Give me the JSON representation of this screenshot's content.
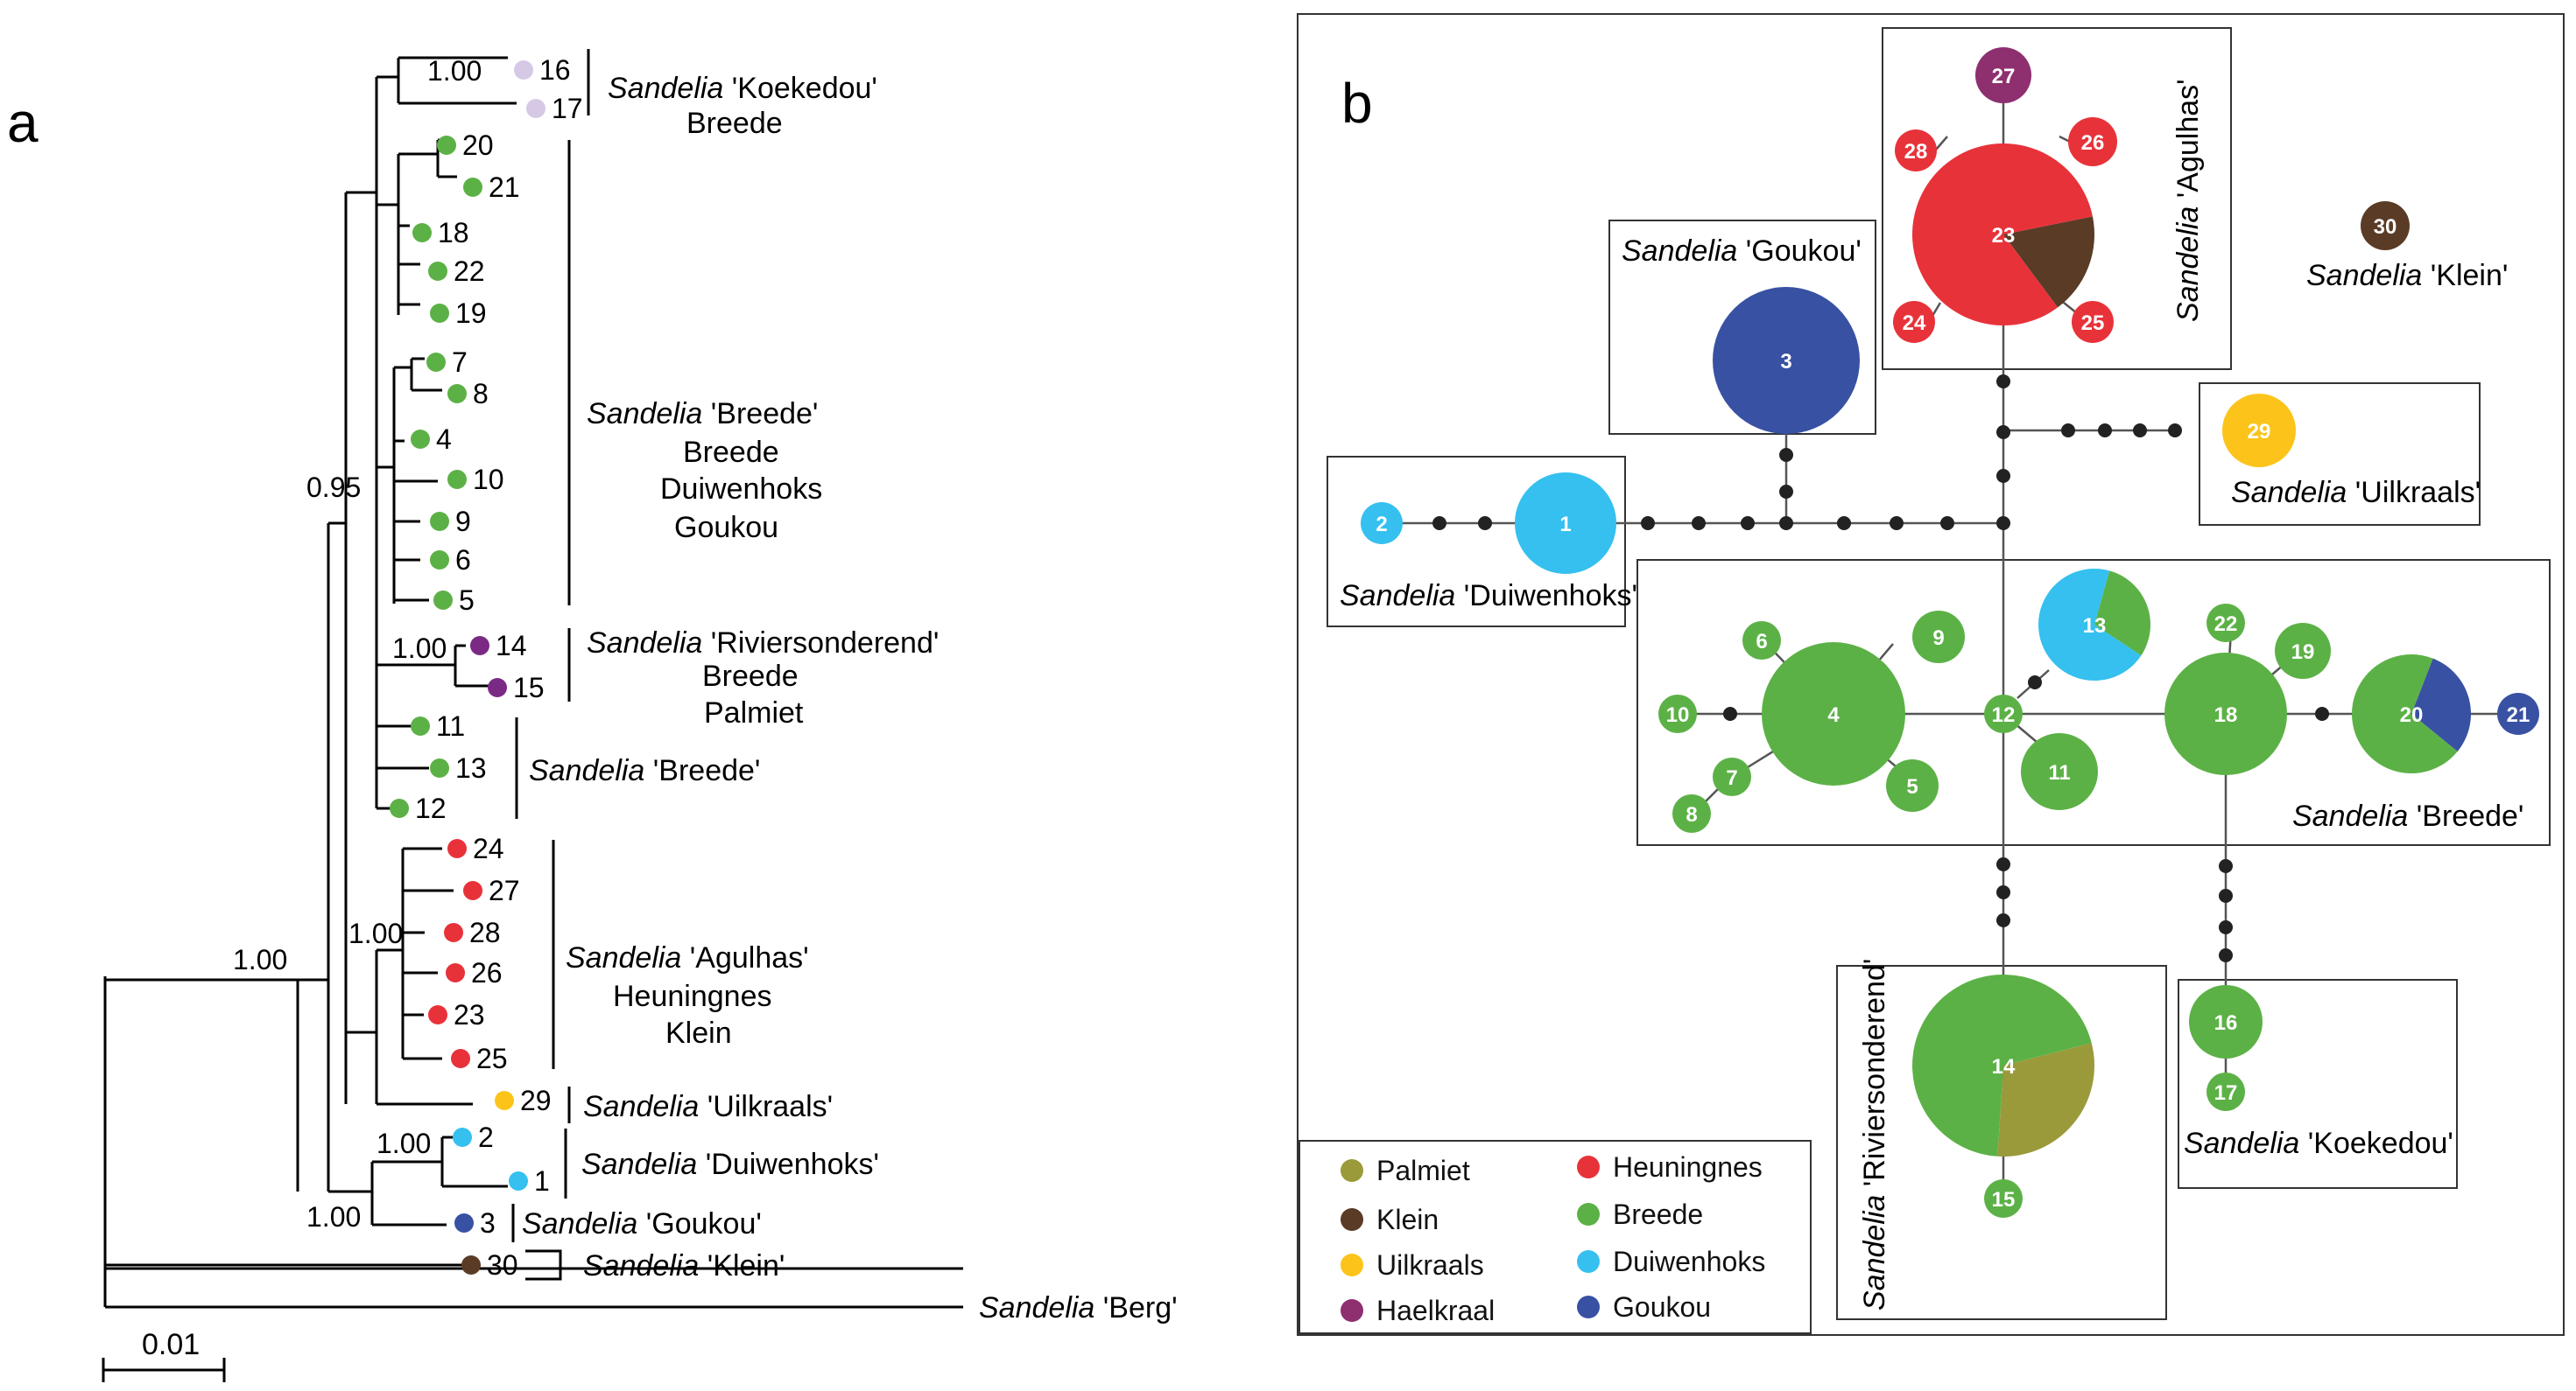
{
  "panels": {
    "a": "a",
    "b": "b"
  },
  "genus": "Sandelia",
  "colors": {
    "Palmiet": "#9b9a3a",
    "Klein": "#5a3b26",
    "Uilkraals": "#fcc41a",
    "Haelkraal": "#8e2f70",
    "Heuningnes": "#e8323a",
    "Breede": "#5cb146",
    "Duiwenhoks": "#35c0ef",
    "Goukou": "#3851a3",
    "Koekedou": "#d6c9e6",
    "Riviersonderend": "#7a2a85"
  },
  "tree": {
    "supports": [
      "1.00",
      "0.95",
      "1.00",
      "1.00",
      "1.00",
      "1.00",
      "1.00"
    ],
    "scale_label": "0.01",
    "tips": [
      {
        "id": "16",
        "label": "16",
        "pop": "Koekedou"
      },
      {
        "id": "17",
        "label": "17",
        "pop": "Koekedou"
      },
      {
        "id": "20",
        "label": "20",
        "pop": "Breede"
      },
      {
        "id": "21",
        "label": "21",
        "pop": "Breede"
      },
      {
        "id": "18",
        "label": "18",
        "pop": "Breede"
      },
      {
        "id": "22",
        "label": "22",
        "pop": "Breede"
      },
      {
        "id": "19",
        "label": "19",
        "pop": "Breede"
      },
      {
        "id": "7",
        "label": "7",
        "pop": "Breede"
      },
      {
        "id": "8",
        "label": "8",
        "pop": "Breede"
      },
      {
        "id": "4",
        "label": "4",
        "pop": "Breede"
      },
      {
        "id": "10",
        "label": "10",
        "pop": "Breede"
      },
      {
        "id": "9",
        "label": "9",
        "pop": "Breede"
      },
      {
        "id": "6",
        "label": "6",
        "pop": "Breede"
      },
      {
        "id": "5",
        "label": "5",
        "pop": "Breede"
      },
      {
        "id": "14",
        "label": "14",
        "pop": "Riviersonderend"
      },
      {
        "id": "15",
        "label": "15",
        "pop": "Riviersonderend"
      },
      {
        "id": "11",
        "label": "11",
        "pop": "Breede"
      },
      {
        "id": "13",
        "label": "13",
        "pop": "Breede"
      },
      {
        "id": "12",
        "label": "12",
        "pop": "Breede"
      },
      {
        "id": "24",
        "label": "24",
        "pop": "Heuningnes"
      },
      {
        "id": "27",
        "label": "27",
        "pop": "Heuningnes"
      },
      {
        "id": "28",
        "label": "28",
        "pop": "Heuningnes"
      },
      {
        "id": "26",
        "label": "26",
        "pop": "Heuningnes"
      },
      {
        "id": "23",
        "label": "23",
        "pop": "Heuningnes"
      },
      {
        "id": "25",
        "label": "25",
        "pop": "Heuningnes"
      },
      {
        "id": "29",
        "label": "29",
        "pop": "Uilkraals"
      },
      {
        "id": "2",
        "label": "2",
        "pop": "Duiwenhoks"
      },
      {
        "id": "1",
        "label": "1",
        "pop": "Duiwenhoks"
      },
      {
        "id": "3",
        "label": "3",
        "pop": "Goukou"
      },
      {
        "id": "30",
        "label": "30",
        "pop": "Klein"
      }
    ],
    "clades": [
      {
        "name": "'Koekedou'",
        "rivers": [
          "Breede"
        ]
      },
      {
        "name": "'Breede'",
        "rivers": [
          "Breede",
          "Duiwenhoks",
          "Goukou"
        ]
      },
      {
        "name": "'Riviersonderend'",
        "rivers": [
          "Breede",
          "Palmiet"
        ]
      },
      {
        "name": "'Breede'",
        "rivers": []
      },
      {
        "name": "'Agulhas'",
        "rivers": [
          "Heuningnes",
          "Klein"
        ]
      },
      {
        "name": "'Uilkraals'",
        "rivers": []
      },
      {
        "name": "'Duiwenhoks'",
        "rivers": []
      },
      {
        "name": "'Goukou'",
        "rivers": []
      },
      {
        "name": "'Klein'",
        "rivers": []
      }
    ],
    "outgroup": {
      "name": "'Berg'"
    }
  },
  "network": {
    "groups": [
      {
        "name": "'Goukou'"
      },
      {
        "name": "'Agulhas'"
      },
      {
        "name": "'Klein'"
      },
      {
        "name": "'Uilkraals'"
      },
      {
        "name": "'Duiwenhoks'"
      },
      {
        "name": "'Breede'"
      },
      {
        "name": "'Riviersonderend'"
      },
      {
        "name": "'Koekedou'"
      }
    ],
    "haplotypes": [
      {
        "label": "1",
        "slices": [
          {
            "pop": "Duiwenhoks",
            "frac": 1
          }
        ]
      },
      {
        "label": "2",
        "slices": [
          {
            "pop": "Duiwenhoks",
            "frac": 1
          }
        ]
      },
      {
        "label": "3",
        "slices": [
          {
            "pop": "Goukou",
            "frac": 1
          }
        ]
      },
      {
        "label": "4",
        "slices": [
          {
            "pop": "Breede",
            "frac": 1
          }
        ]
      },
      {
        "label": "5",
        "slices": [
          {
            "pop": "Breede",
            "frac": 1
          }
        ]
      },
      {
        "label": "6",
        "slices": [
          {
            "pop": "Breede",
            "frac": 1
          }
        ]
      },
      {
        "label": "7",
        "slices": [
          {
            "pop": "Breede",
            "frac": 1
          }
        ]
      },
      {
        "label": "8",
        "slices": [
          {
            "pop": "Breede",
            "frac": 1
          }
        ]
      },
      {
        "label": "9",
        "slices": [
          {
            "pop": "Breede",
            "frac": 1
          }
        ]
      },
      {
        "label": "10",
        "slices": [
          {
            "pop": "Breede",
            "frac": 1
          }
        ]
      },
      {
        "label": "11",
        "slices": [
          {
            "pop": "Breede",
            "frac": 1
          }
        ]
      },
      {
        "label": "12",
        "slices": [
          {
            "pop": "Breede",
            "frac": 1
          }
        ]
      },
      {
        "label": "13",
        "slices": [
          {
            "pop": "Breede",
            "frac": 0.3
          },
          {
            "pop": "Duiwenhoks",
            "frac": 0.7
          }
        ]
      },
      {
        "label": "14",
        "slices": [
          {
            "pop": "Palmiet",
            "frac": 0.3
          },
          {
            "pop": "Breede",
            "frac": 0.7
          }
        ]
      },
      {
        "label": "15",
        "slices": [
          {
            "pop": "Breede",
            "frac": 1
          }
        ]
      },
      {
        "label": "16",
        "slices": [
          {
            "pop": "Breede",
            "frac": 1
          }
        ]
      },
      {
        "label": "17",
        "slices": [
          {
            "pop": "Breede",
            "frac": 1
          }
        ]
      },
      {
        "label": "18",
        "slices": [
          {
            "pop": "Breede",
            "frac": 1
          }
        ]
      },
      {
        "label": "19",
        "slices": [
          {
            "pop": "Breede",
            "frac": 1
          }
        ]
      },
      {
        "label": "20",
        "slices": [
          {
            "pop": "Goukou",
            "frac": 0.3
          },
          {
            "pop": "Breede",
            "frac": 0.7
          }
        ]
      },
      {
        "label": "21",
        "slices": [
          {
            "pop": "Goukou",
            "frac": 1
          }
        ]
      },
      {
        "label": "22",
        "slices": [
          {
            "pop": "Breede",
            "frac": 1
          }
        ]
      },
      {
        "label": "23",
        "slices": [
          {
            "pop": "Klein",
            "frac": 0.18
          },
          {
            "pop": "Heuningnes",
            "frac": 0.82
          }
        ]
      },
      {
        "label": "24",
        "slices": [
          {
            "pop": "Heuningnes",
            "frac": 1
          }
        ]
      },
      {
        "label": "25",
        "slices": [
          {
            "pop": "Heuningnes",
            "frac": 1
          }
        ]
      },
      {
        "label": "26",
        "slices": [
          {
            "pop": "Heuningnes",
            "frac": 1
          }
        ]
      },
      {
        "label": "27",
        "slices": [
          {
            "pop": "Haelkraal",
            "frac": 1
          }
        ]
      },
      {
        "label": "28",
        "slices": [
          {
            "pop": "Heuningnes",
            "frac": 1
          }
        ]
      },
      {
        "label": "29",
        "slices": [
          {
            "pop": "Uilkraals",
            "frac": 1
          }
        ]
      },
      {
        "label": "30",
        "slices": [
          {
            "pop": "Klein",
            "frac": 1
          }
        ]
      }
    ],
    "legend": [
      {
        "label": "Palmiet",
        "pop": "Palmiet"
      },
      {
        "label": "Klein",
        "pop": "Klein"
      },
      {
        "label": "Uilkraals",
        "pop": "Uilkraals"
      },
      {
        "label": "Haelkraal",
        "pop": "Haelkraal"
      },
      {
        "label": "Heuningnes",
        "pop": "Heuningnes"
      },
      {
        "label": "Breede",
        "pop": "Breede"
      },
      {
        "label": "Duiwenhoks",
        "pop": "Duiwenhoks"
      },
      {
        "label": "Goukou",
        "pop": "Goukou"
      }
    ]
  }
}
